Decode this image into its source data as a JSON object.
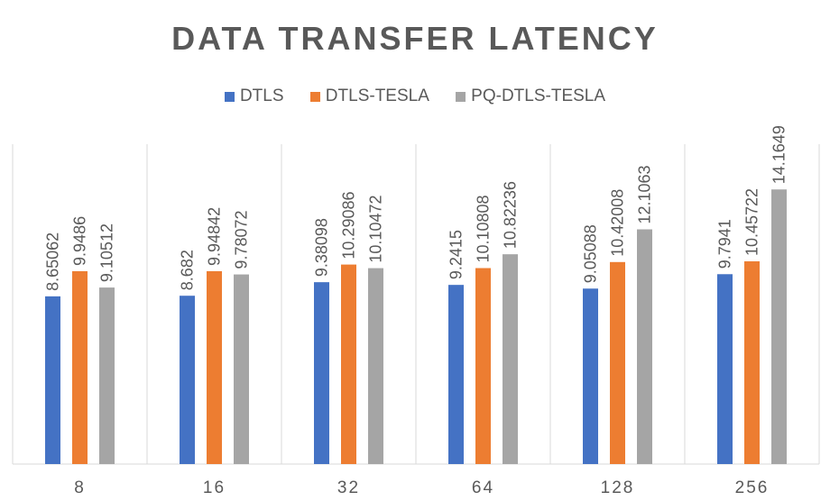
{
  "chart_data": {
    "type": "bar",
    "title": "DATA TRANSFER LATENCY",
    "xlabel": "",
    "ylabel": "",
    "categories": [
      "8",
      "16",
      "32",
      "64",
      "128",
      "256"
    ],
    "series": [
      {
        "name": "DTLS",
        "color": "#4472C4",
        "values": [
          8.65062,
          8.682,
          9.38098,
          9.2415,
          9.05088,
          9.7941
        ],
        "labels": [
          "8.65062",
          "8.682",
          "9.38098",
          "9.2415",
          "9.05088",
          "9.7941"
        ]
      },
      {
        "name": "DTLS-TESLA",
        "color": "#ED7D31",
        "values": [
          9.9486,
          9.94842,
          10.29086,
          10.10808,
          10.42008,
          10.45722
        ],
        "labels": [
          "9.9486",
          "9.94842",
          "10.29086",
          "10.10808",
          "10.42008",
          "10.45722"
        ]
      },
      {
        "name": "PQ-DTLS-TESLA",
        "color": "#A5A5A5",
        "values": [
          9.10512,
          9.78072,
          10.10472,
          10.82236,
          12.1063,
          14.1649
        ],
        "labels": [
          "9.10512",
          "9.78072",
          "10.10472",
          "10.82236",
          "12.1063",
          "14.1649"
        ]
      }
    ],
    "ylim": [
      0,
      16.5
    ],
    "grid": "vertical category separators",
    "legend_position": "top"
  }
}
